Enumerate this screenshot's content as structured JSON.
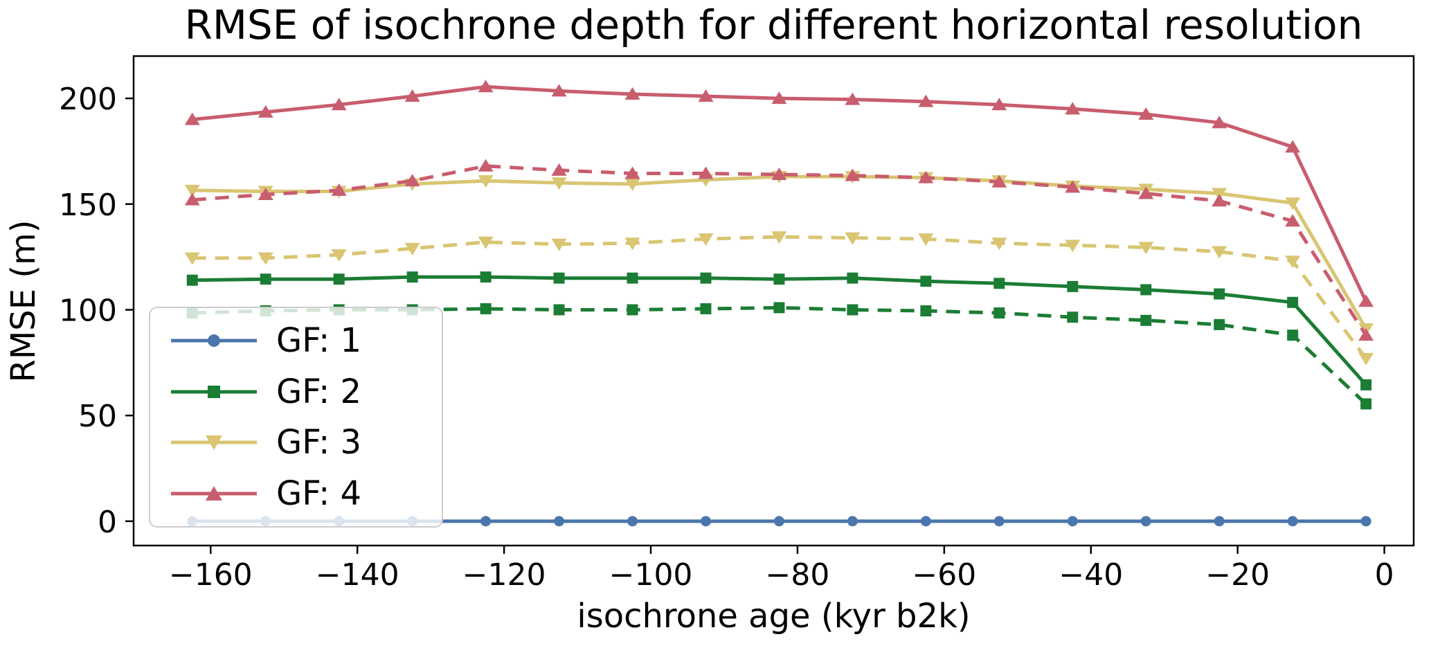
{
  "title": "RMSE of isochrone depth for different horizontal resolution",
  "x_axis": {
    "label": "isochrone age (kyr b2k)",
    "tick_values": [
      -160,
      -140,
      -120,
      -100,
      -80,
      -60,
      -40,
      -20,
      0
    ],
    "tick_labels": [
      "−160",
      "−140",
      "−120",
      "−100",
      "−80",
      "−60",
      "−40",
      "−20",
      "0"
    ]
  },
  "y_axis": {
    "label": "RMSE (m)",
    "tick_values": [
      0,
      50,
      100,
      150,
      200
    ],
    "tick_labels": [
      "0",
      "50",
      "100",
      "150",
      "200"
    ]
  },
  "legend": {
    "items": [
      {
        "label": "GF: 1",
        "series_index": 0
      },
      {
        "label": "GF: 2",
        "series_index": 1
      },
      {
        "label": "GF: 3",
        "series_index": 3
      },
      {
        "label": "GF: 4",
        "series_index": 5
      }
    ]
  },
  "colors": {
    "blue": "#4a76ad",
    "green": "#1b7c34",
    "yellow": "#d9c572",
    "red": "#c85d6e",
    "axis": "#000000"
  },
  "chart_data": {
    "type": "line",
    "title": "RMSE of isochrone depth for different horizontal resolution",
    "xlabel": "isochrone age (kyr b2k)",
    "ylabel": "RMSE (m)",
    "xlim": [
      -170.5,
      4.0
    ],
    "ylim": [
      -11.5,
      220
    ],
    "grid": false,
    "legend_position": "lower-left",
    "x": [
      -162.5,
      -152.5,
      -142.5,
      -132.5,
      -122.5,
      -112.5,
      -102.5,
      -92.5,
      -82.5,
      -72.5,
      -62.5,
      -52.5,
      -42.5,
      -32.5,
      -22.5,
      -12.5,
      -2.5
    ],
    "series": [
      {
        "name": "GF: 1",
        "color": "#4a76ad",
        "marker": "circle",
        "line": "solid",
        "values": [
          0,
          0,
          0,
          0,
          0,
          0,
          0,
          0,
          0,
          0,
          0,
          0,
          0,
          0,
          0,
          0,
          0
        ]
      },
      {
        "name": "GF: 2",
        "color": "#1b7c34",
        "marker": "square",
        "line": "solid",
        "values": [
          114,
          114.5,
          114.5,
          115.5,
          115.5,
          115,
          115,
          115,
          114.5,
          115,
          113.5,
          112.5,
          111,
          109.5,
          107.5,
          103.5,
          64.5
        ]
      },
      {
        "name": "GF: 2 dashed",
        "color": "#1b7c34",
        "marker": "square",
        "line": "dashed",
        "values": [
          98.5,
          99.5,
          100,
          100,
          100.5,
          100,
          100,
          100.5,
          101,
          100,
          99.5,
          98.5,
          96.5,
          95,
          93,
          88,
          55.5
        ]
      },
      {
        "name": "GF: 3",
        "color": "#d9c572",
        "marker": "triangle-down",
        "line": "solid",
        "values": [
          156.5,
          156,
          156,
          159.5,
          161,
          160,
          159.5,
          161.5,
          163,
          163,
          162.5,
          161,
          158.5,
          157,
          155,
          150.5,
          91
        ]
      },
      {
        "name": "GF: 3 dashed",
        "color": "#d9c572",
        "marker": "triangle-down",
        "line": "dashed",
        "values": [
          124.5,
          124.5,
          126,
          129,
          132,
          131,
          131.5,
          133.5,
          134.5,
          134,
          133.5,
          131.5,
          130.5,
          129.5,
          127.5,
          123,
          77
        ]
      },
      {
        "name": "GF: 4",
        "color": "#c85d6e",
        "marker": "triangle-up",
        "line": "solid",
        "values": [
          190,
          193.5,
          197,
          201,
          205.5,
          203.5,
          202,
          201,
          200,
          199.5,
          198.5,
          197,
          195,
          192.5,
          188.5,
          177,
          104
        ]
      },
      {
        "name": "GF: 4 dashed",
        "color": "#c85d6e",
        "marker": "triangle-up",
        "line": "dashed",
        "values": [
          152,
          154.5,
          156.5,
          161,
          168,
          166,
          164.5,
          164.5,
          164,
          163.5,
          162.5,
          160.5,
          158,
          155,
          151.5,
          142,
          88
        ]
      }
    ]
  }
}
